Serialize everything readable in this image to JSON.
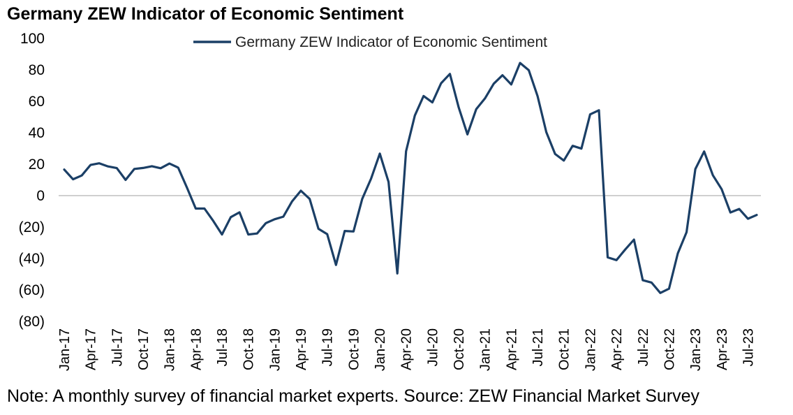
{
  "title": "Germany ZEW Indicator of Economic Sentiment",
  "note": "Note: A monthly survey of financial market experts. Source: ZEW Financial Market Survey",
  "colors": {
    "line": "#1b3f66",
    "zero_line": "#bfbfbf"
  },
  "chart_data": {
    "type": "line",
    "title": "Germany ZEW Indicator of Economic Sentiment",
    "xlabel": "",
    "ylabel": "",
    "ylim": [
      -80,
      100
    ],
    "y_ticks": [
      100,
      80,
      60,
      40,
      20,
      0,
      -20,
      -40,
      -60,
      -80
    ],
    "y_tick_labels": [
      "100",
      "80",
      "60",
      "40",
      "20",
      "0",
      "(20)",
      "(40)",
      "(60)",
      "(80)"
    ],
    "x_tick_labels": [
      "Jan-17",
      "Apr-17",
      "Jul-17",
      "Oct-17",
      "Jan-18",
      "Apr-18",
      "Jul-18",
      "Oct-18",
      "Jan-19",
      "Apr-19",
      "Jul-19",
      "Oct-19",
      "Jan-20",
      "Apr-20",
      "Jul-20",
      "Oct-20",
      "Jan-21",
      "Apr-21",
      "Jul-21",
      "Oct-21",
      "Jan-22",
      "Apr-22",
      "Jul-22",
      "Oct-22",
      "Jan-23",
      "Apr-23",
      "Jul-23"
    ],
    "grid": false,
    "legend": "top-center",
    "series": [
      {
        "name": "Germany ZEW Indicator of Economic Sentiment",
        "x": [
          "Jan-17",
          "Feb-17",
          "Mar-17",
          "Apr-17",
          "May-17",
          "Jun-17",
          "Jul-17",
          "Aug-17",
          "Sep-17",
          "Oct-17",
          "Nov-17",
          "Dec-17",
          "Jan-18",
          "Feb-18",
          "Mar-18",
          "Apr-18",
          "May-18",
          "Jun-18",
          "Jul-18",
          "Aug-18",
          "Sep-18",
          "Oct-18",
          "Nov-18",
          "Dec-18",
          "Jan-19",
          "Feb-19",
          "Mar-19",
          "Apr-19",
          "May-19",
          "Jun-19",
          "Jul-19",
          "Aug-19",
          "Sep-19",
          "Oct-19",
          "Nov-19",
          "Dec-19",
          "Jan-20",
          "Feb-20",
          "Mar-20",
          "Apr-20",
          "May-20",
          "Jun-20",
          "Jul-20",
          "Aug-20",
          "Sep-20",
          "Oct-20",
          "Nov-20",
          "Dec-20",
          "Jan-21",
          "Feb-21",
          "Mar-21",
          "Apr-21",
          "May-21",
          "Jun-21",
          "Jul-21",
          "Aug-21",
          "Sep-21",
          "Oct-21",
          "Nov-21",
          "Dec-21",
          "Jan-22",
          "Feb-22",
          "Mar-22",
          "Apr-22",
          "May-22",
          "Jun-22",
          "Jul-22",
          "Aug-22",
          "Sep-22",
          "Oct-22",
          "Nov-22",
          "Dec-22",
          "Jan-23",
          "Feb-23",
          "Mar-23",
          "Apr-23",
          "May-23",
          "Jun-23",
          "Jul-23",
          "Aug-23"
        ],
        "values": [
          16.6,
          10.4,
          12.8,
          19.5,
          20.6,
          18.6,
          17.5,
          10.0,
          17.0,
          17.6,
          18.7,
          17.4,
          20.4,
          17.8,
          5.1,
          -8.2,
          -8.2,
          -16.1,
          -24.7,
          -13.7,
          -10.6,
          -24.7,
          -24.1,
          -17.5,
          -15.0,
          -13.4,
          -3.6,
          3.1,
          -2.1,
          -21.1,
          -24.5,
          -44.1,
          -22.5,
          -22.8,
          -2.1,
          10.7,
          26.7,
          8.7,
          -49.5,
          28.2,
          51.0,
          63.4,
          59.3,
          71.5,
          77.4,
          56.1,
          39.0,
          55.0,
          61.8,
          71.2,
          76.6,
          70.7,
          84.4,
          79.8,
          63.3,
          40.4,
          26.5,
          22.3,
          31.7,
          29.9,
          51.7,
          54.3,
          -39.3,
          -41.0,
          -34.3,
          -28.0,
          -53.8,
          -55.3,
          -61.9,
          -59.2,
          -36.7,
          -23.3,
          16.9,
          28.1,
          13.0,
          4.1,
          -10.7,
          -8.5,
          -14.7,
          -12.3
        ]
      }
    ]
  }
}
